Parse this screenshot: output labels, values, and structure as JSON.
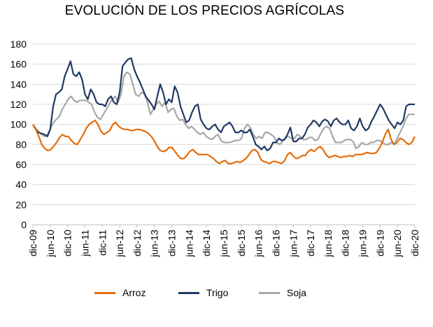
{
  "chart_data": {
    "type": "line",
    "title": "EVOLUCIÓN DE LOS PRECIOS AGRÍCOLAS",
    "xlabel": "",
    "ylabel": "",
    "ylim": [
      0,
      180
    ],
    "yticks": [
      0,
      20,
      40,
      60,
      80,
      100,
      120,
      140,
      160,
      180
    ],
    "x_tick_labels": [
      "dic-09",
      "jun-10",
      "dic-10",
      "jun-11",
      "dic-11",
      "jun-12",
      "dic-12",
      "jun-13",
      "dic-13",
      "jun-14",
      "dic-14",
      "jun-15",
      "dic-15",
      "jun-16",
      "dic-16",
      "jun-17",
      "dic-17",
      "jun-18",
      "dic-18",
      "jun-19",
      "dic-19",
      "jun-20",
      "dic-20"
    ],
    "x_start": "2009-12",
    "x_end": "2020-12",
    "grid": true,
    "legend_position": "bottom",
    "series": [
      {
        "name": "Arroz",
        "color": "#e36c0a",
        "values": [
          100,
          95,
          88,
          80,
          76,
          74,
          75,
          78,
          82,
          87,
          90,
          88,
          88,
          84,
          81,
          80,
          85,
          90,
          96,
          100,
          102,
          104,
          100,
          93,
          90,
          92,
          94,
          100,
          102,
          98,
          96,
          95,
          95,
          94,
          94,
          95,
          95,
          94,
          93,
          91,
          88,
          84,
          78,
          74,
          73,
          74,
          77,
          77,
          73,
          69,
          66,
          66,
          69,
          73,
          75,
          72,
          70,
          70,
          70,
          70,
          68,
          66,
          63,
          61,
          63,
          64,
          61,
          61,
          62,
          63,
          62,
          64,
          66,
          70,
          74,
          75,
          72,
          65,
          63,
          62,
          61,
          63,
          63,
          62,
          61,
          64,
          70,
          72,
          68,
          66,
          67,
          69,
          69,
          73,
          75,
          73,
          76,
          78,
          75,
          70,
          67,
          68,
          69,
          68,
          67,
          68,
          68,
          69,
          68,
          70,
          70,
          70,
          71,
          72,
          71,
          71,
          72,
          76,
          82,
          90,
          95,
          85,
          80,
          82,
          86,
          85,
          82,
          80,
          82,
          88
        ]
      },
      {
        "name": "Trigo",
        "color": "#1f3864",
        "values": [
          100,
          95,
          92,
          91,
          90,
          88,
          95,
          118,
          130,
          132,
          135,
          148,
          155,
          163,
          150,
          148,
          152,
          145,
          130,
          125,
          135,
          130,
          122,
          120,
          120,
          118,
          125,
          128,
          122,
          120,
          132,
          158,
          162,
          165,
          166,
          155,
          148,
          142,
          135,
          128,
          124,
          120,
          115,
          128,
          140,
          132,
          120,
          125,
          122,
          138,
          132,
          118,
          110,
          102,
          104,
          112,
          118,
          120,
          105,
          100,
          96,
          95,
          98,
          100,
          95,
          92,
          98,
          100,
          102,
          98,
          92,
          92,
          94,
          92,
          92,
          95,
          88,
          80,
          78,
          75,
          78,
          74,
          76,
          82,
          82,
          86,
          84,
          85,
          90,
          97,
          83,
          83,
          86,
          86,
          90,
          97,
          100,
          104,
          102,
          98,
          103,
          105,
          103,
          98,
          104,
          106,
          102,
          100,
          100,
          104,
          96,
          94,
          98,
          106,
          98,
          94,
          96,
          103,
          108,
          114,
          120,
          116,
          110,
          104,
          100,
          96,
          102,
          100,
          104,
          118,
          120,
          120,
          120
        ]
      },
      {
        "name": "Soja",
        "color": "#a6a6a6",
        "values": [
          100,
          96,
          92,
          90,
          88,
          90,
          96,
          102,
          105,
          108,
          115,
          120,
          125,
          128,
          124,
          122,
          124,
          124,
          124,
          122,
          120,
          112,
          107,
          105,
          110,
          115,
          120,
          125,
          128,
          122,
          130,
          148,
          152,
          150,
          140,
          130,
          128,
          132,
          130,
          122,
          110,
          115,
          120,
          123,
          118,
          122,
          112,
          115,
          116,
          108,
          104,
          105,
          100,
          96,
          98,
          95,
          92,
          90,
          92,
          88,
          86,
          85,
          88,
          90,
          84,
          82,
          82,
          82,
          83,
          84,
          84,
          86,
          96,
          100,
          97,
          90,
          86,
          88,
          86,
          92,
          92,
          90,
          88,
          82,
          80,
          83,
          87,
          88,
          86,
          86,
          90,
          88,
          85,
          85,
          87,
          87,
          84,
          85,
          91,
          96,
          98,
          96,
          88,
          82,
          82,
          82,
          84,
          85,
          85,
          83,
          76,
          78,
          82,
          80,
          80,
          82,
          82,
          84,
          84,
          82,
          80,
          80,
          82,
          80,
          86,
          92,
          98,
          106,
          110,
          110,
          110
        ]
      }
    ]
  },
  "legend": {
    "items": [
      {
        "label": "Arroz",
        "color": "#e36c0a"
      },
      {
        "label": "Trigo",
        "color": "#1f3864"
      },
      {
        "label": "Soja",
        "color": "#a6a6a6"
      }
    ]
  }
}
